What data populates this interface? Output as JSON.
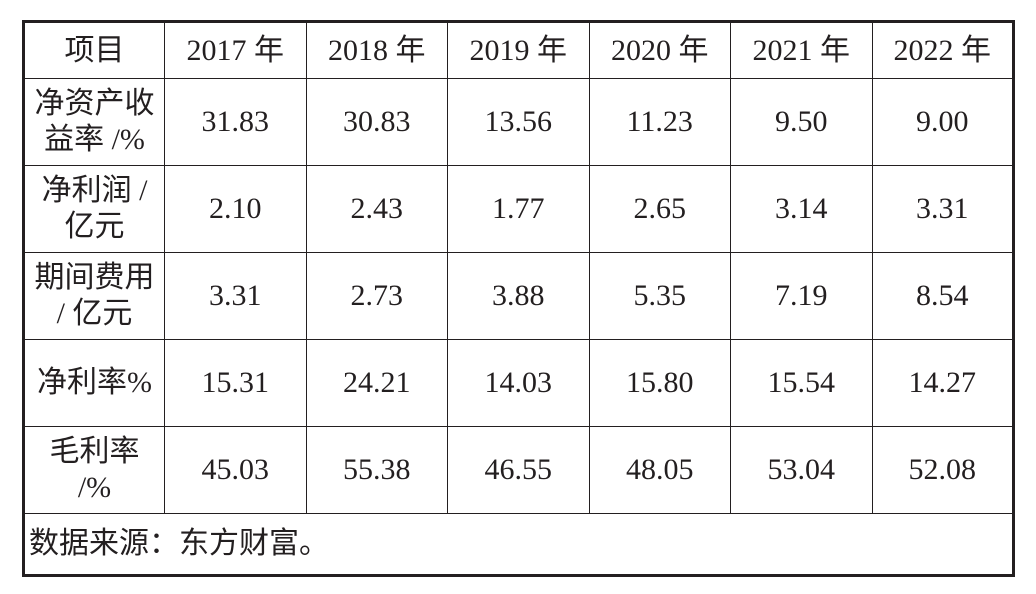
{
  "table": {
    "header": {
      "label": "项目",
      "years": [
        "2017 年",
        "2018 年",
        "2019 年",
        "2020 年",
        "2021 年",
        "2022 年"
      ]
    },
    "rows": [
      {
        "label_lines": [
          "净资产收",
          "益率 /%"
        ],
        "values": [
          "31.83",
          "30.83",
          "13.56",
          "11.23",
          "9.50",
          "9.00"
        ]
      },
      {
        "label_lines": [
          "净利润 /",
          "亿元"
        ],
        "values": [
          "2.10",
          "2.43",
          "1.77",
          "2.65",
          "3.14",
          "3.31"
        ]
      },
      {
        "label_lines": [
          "期间费用",
          "/ 亿元"
        ],
        "values": [
          "3.31",
          "2.73",
          "3.88",
          "5.35",
          "7.19",
          "8.54"
        ]
      },
      {
        "label_lines": [
          "净利率%"
        ],
        "values": [
          "15.31",
          "24.21",
          "14.03",
          "15.80",
          "15.54",
          "14.27"
        ]
      },
      {
        "label_lines": [
          "毛利率",
          "/%"
        ],
        "values": [
          "45.03",
          "55.38",
          "46.55",
          "48.05",
          "53.04",
          "52.08"
        ]
      }
    ],
    "source": "数据来源：东方财富。"
  }
}
